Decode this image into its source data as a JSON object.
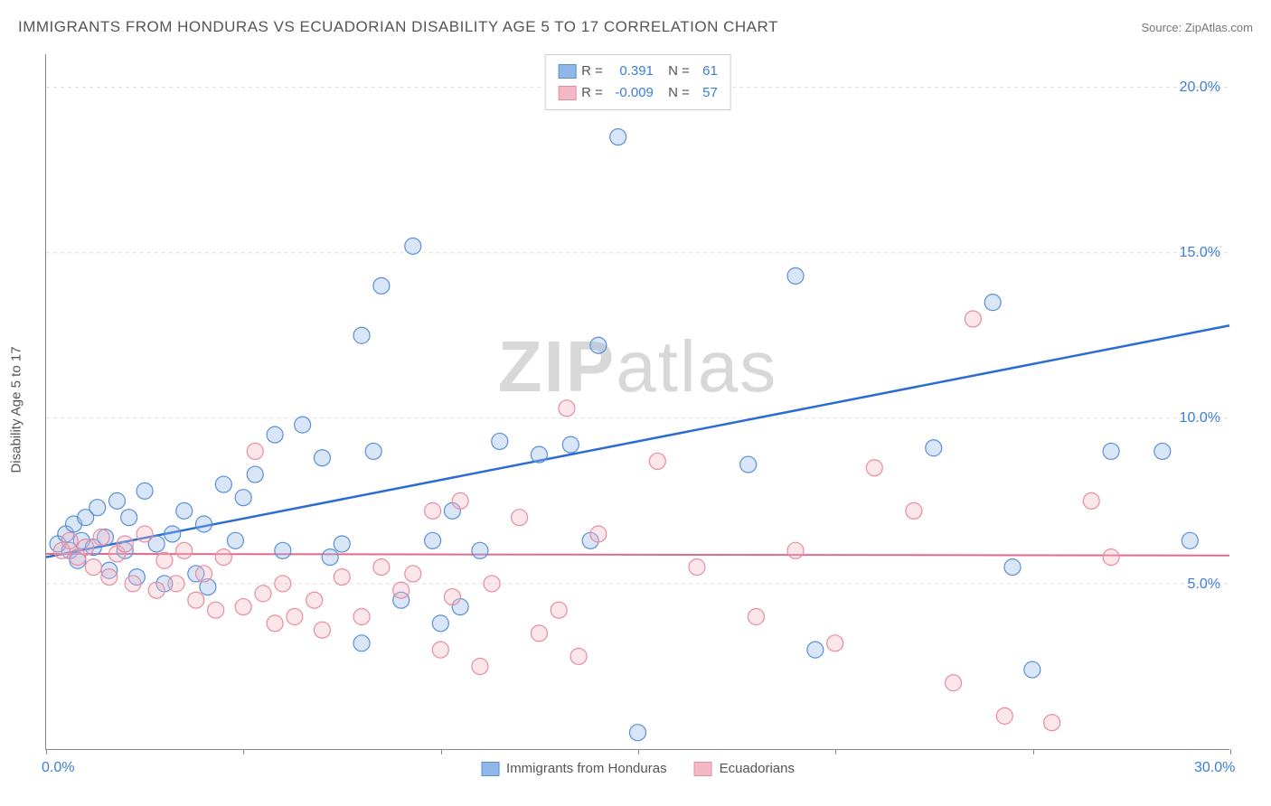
{
  "header": {
    "title": "IMMIGRANTS FROM HONDURAS VS ECUADORIAN DISABILITY AGE 5 TO 17 CORRELATION CHART",
    "source_prefix": "Source: ",
    "source_name": "ZipAtlas.com"
  },
  "watermark": {
    "bold": "ZIP",
    "light": "atlas"
  },
  "chart": {
    "type": "scatter",
    "y_axis_label": "Disability Age 5 to 17",
    "xlim": [
      0,
      30
    ],
    "ylim": [
      0,
      21
    ],
    "x_ticks": [
      0,
      5,
      10,
      15,
      20,
      25,
      30
    ],
    "x_tick_labels": {
      "0": "0.0%",
      "30": "30.0%"
    },
    "y_ticks": [
      5,
      10,
      15,
      20
    ],
    "y_tick_labels": {
      "5": "5.0%",
      "10": "10.0%",
      "15": "15.0%",
      "20": "20.0%"
    },
    "grid_color": "#dddddd",
    "axis_color": "#888888",
    "background_color": "#ffffff",
    "marker_radius": 9,
    "marker_fill_opacity": 0.35,
    "marker_stroke_width": 1.2,
    "series": [
      {
        "key": "honduras",
        "label": "Immigrants from Honduras",
        "color_fill": "#8fb8e8",
        "color_stroke": "#5a8fd6",
        "R": "0.391",
        "N": "61",
        "trend": {
          "x1": 0,
          "y1": 5.8,
          "x2": 30,
          "y2": 12.8,
          "color": "#2b6cd4",
          "width": 2.5
        },
        "points": [
          [
            0.3,
            6.2
          ],
          [
            0.5,
            6.5
          ],
          [
            0.6,
            6.0
          ],
          [
            0.7,
            6.8
          ],
          [
            0.8,
            5.7
          ],
          [
            0.9,
            6.3
          ],
          [
            1.0,
            7.0
          ],
          [
            1.2,
            6.1
          ],
          [
            1.3,
            7.3
          ],
          [
            1.5,
            6.4
          ],
          [
            1.6,
            5.4
          ],
          [
            1.8,
            7.5
          ],
          [
            2.0,
            6.0
          ],
          [
            2.1,
            7.0
          ],
          [
            2.3,
            5.2
          ],
          [
            2.5,
            7.8
          ],
          [
            2.8,
            6.2
          ],
          [
            3.0,
            5.0
          ],
          [
            3.2,
            6.5
          ],
          [
            3.5,
            7.2
          ],
          [
            3.8,
            5.3
          ],
          [
            4.0,
            6.8
          ],
          [
            4.1,
            4.9
          ],
          [
            4.5,
            8.0
          ],
          [
            4.8,
            6.3
          ],
          [
            5.0,
            7.6
          ],
          [
            5.3,
            8.3
          ],
          [
            5.8,
            9.5
          ],
          [
            6.0,
            6.0
          ],
          [
            6.5,
            9.8
          ],
          [
            7.0,
            8.8
          ],
          [
            7.2,
            5.8
          ],
          [
            7.5,
            6.2
          ],
          [
            8.0,
            12.5
          ],
          [
            8.0,
            3.2
          ],
          [
            8.3,
            9.0
          ],
          [
            8.5,
            14.0
          ],
          [
            9.0,
            4.5
          ],
          [
            9.3,
            15.2
          ],
          [
            9.8,
            6.3
          ],
          [
            10.0,
            3.8
          ],
          [
            10.3,
            7.2
          ],
          [
            10.5,
            4.3
          ],
          [
            11.0,
            6.0
          ],
          [
            11.5,
            9.3
          ],
          [
            12.5,
            8.9
          ],
          [
            13.3,
            9.2
          ],
          [
            13.8,
            6.3
          ],
          [
            14.0,
            12.2
          ],
          [
            14.5,
            18.5
          ],
          [
            15.0,
            0.5
          ],
          [
            17.8,
            8.6
          ],
          [
            19.0,
            14.3
          ],
          [
            19.5,
            3.0
          ],
          [
            22.5,
            9.1
          ],
          [
            24.5,
            5.5
          ],
          [
            25.0,
            2.4
          ],
          [
            27.0,
            9.0
          ],
          [
            28.3,
            9.0
          ],
          [
            29.0,
            6.3
          ],
          [
            24.0,
            13.5
          ]
        ]
      },
      {
        "key": "ecuadorians",
        "label": "Ecuadorians",
        "color_fill": "#f4b8c4",
        "color_stroke": "#e88ba0",
        "R": "-0.009",
        "N": "57",
        "trend": {
          "x1": 0,
          "y1": 5.9,
          "x2": 30,
          "y2": 5.85,
          "color": "#e26a8a",
          "width": 2
        },
        "points": [
          [
            0.4,
            6.0
          ],
          [
            0.6,
            6.3
          ],
          [
            0.8,
            5.8
          ],
          [
            1.0,
            6.1
          ],
          [
            1.2,
            5.5
          ],
          [
            1.4,
            6.4
          ],
          [
            1.6,
            5.2
          ],
          [
            1.8,
            5.9
          ],
          [
            2.0,
            6.2
          ],
          [
            2.2,
            5.0
          ],
          [
            2.5,
            6.5
          ],
          [
            2.8,
            4.8
          ],
          [
            3.0,
            5.7
          ],
          [
            3.3,
            5.0
          ],
          [
            3.5,
            6.0
          ],
          [
            3.8,
            4.5
          ],
          [
            4.0,
            5.3
          ],
          [
            4.3,
            4.2
          ],
          [
            4.5,
            5.8
          ],
          [
            5.0,
            4.3
          ],
          [
            5.3,
            9.0
          ],
          [
            5.5,
            4.7
          ],
          [
            5.8,
            3.8
          ],
          [
            6.0,
            5.0
          ],
          [
            6.3,
            4.0
          ],
          [
            6.8,
            4.5
          ],
          [
            7.0,
            3.6
          ],
          [
            7.5,
            5.2
          ],
          [
            8.0,
            4.0
          ],
          [
            8.5,
            5.5
          ],
          [
            9.0,
            4.8
          ],
          [
            9.3,
            5.3
          ],
          [
            9.8,
            7.2
          ],
          [
            10.0,
            3.0
          ],
          [
            10.3,
            4.6
          ],
          [
            10.5,
            7.5
          ],
          [
            11.0,
            2.5
          ],
          [
            11.3,
            5.0
          ],
          [
            12.0,
            7.0
          ],
          [
            12.5,
            3.5
          ],
          [
            13.0,
            4.2
          ],
          [
            13.2,
            10.3
          ],
          [
            13.5,
            2.8
          ],
          [
            14.0,
            6.5
          ],
          [
            15.5,
            8.7
          ],
          [
            16.5,
            5.5
          ],
          [
            18.0,
            4.0
          ],
          [
            19.0,
            6.0
          ],
          [
            22.0,
            7.2
          ],
          [
            23.0,
            2.0
          ],
          [
            23.5,
            13.0
          ],
          [
            24.3,
            1.0
          ],
          [
            25.5,
            0.8
          ],
          [
            26.5,
            7.5
          ],
          [
            27.0,
            5.8
          ],
          [
            21.0,
            8.5
          ],
          [
            20.0,
            3.2
          ]
        ]
      }
    ]
  },
  "legend_labels": {
    "R": "R =",
    "N": "N ="
  }
}
